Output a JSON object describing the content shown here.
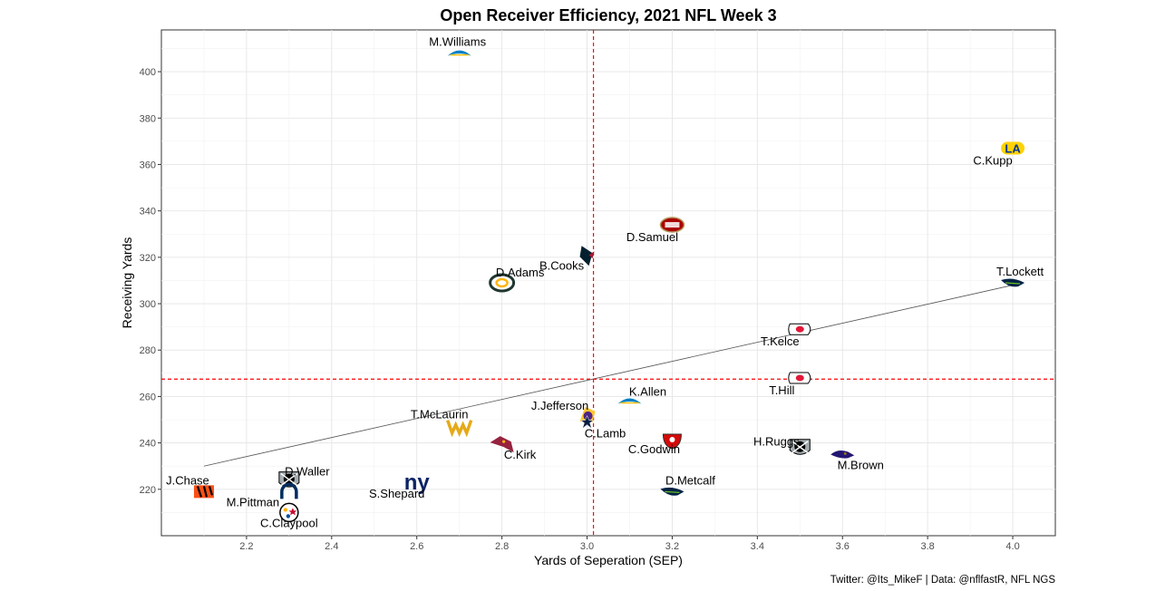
{
  "chart_data": {
    "type": "scatter",
    "title": "Open Receiver Efficiency, 2021 NFL Week 3",
    "xlabel": "Yards of Seperation (SEP)",
    "ylabel": "Receiving Yards",
    "caption": "Twitter: @Its_MikeF | Data: @nflfastR, NFL NGS",
    "xlim": [
      2.0,
      4.1
    ],
    "ylim": [
      200,
      418
    ],
    "x_ticks": [
      "2.2",
      "2.4",
      "2.6",
      "2.8",
      "3.0",
      "3.2",
      "3.4",
      "3.6",
      "3.8",
      "4.0"
    ],
    "y_ticks": [
      "220",
      "240",
      "260",
      "280",
      "300",
      "320",
      "340",
      "360",
      "380",
      "400"
    ],
    "grid": true,
    "reference_lines": {
      "x_mean": 3.015,
      "y_mean": 267.5,
      "color": "#ff0000",
      "style": "dashed"
    },
    "trend_line": {
      "x": [
        2.1,
        4.0
      ],
      "y": [
        230,
        308
      ],
      "color": "#555555"
    },
    "points": [
      {
        "player": "M.Williams",
        "team": "LAC",
        "x": 2.7,
        "y": 408
      },
      {
        "player": "C.Kupp",
        "team": "LA",
        "x": 4.0,
        "y": 367
      },
      {
        "player": "D.Samuel",
        "team": "SF",
        "x": 3.2,
        "y": 334
      },
      {
        "player": "B.Cooks",
        "team": "HOU",
        "x": 3.0,
        "y": 321
      },
      {
        "player": "D.Adams",
        "team": "GB",
        "x": 2.8,
        "y": 309
      },
      {
        "player": "T.Lockett",
        "team": "SEA",
        "x": 4.0,
        "y": 309
      },
      {
        "player": "T.Kelce",
        "team": "KC",
        "x": 3.5,
        "y": 289
      },
      {
        "player": "T.Hill",
        "team": "KC",
        "x": 3.5,
        "y": 268
      },
      {
        "player": "K.Allen",
        "team": "LAC",
        "x": 3.1,
        "y": 258
      },
      {
        "player": "J.Jefferson",
        "team": "MIN",
        "x": 3.0,
        "y": 252
      },
      {
        "player": "C.Lamb",
        "team": "DAL",
        "x": 3.0,
        "y": 249
      },
      {
        "player": "T.McLaurin",
        "team": "WAS",
        "x": 2.7,
        "y": 247
      },
      {
        "player": "C.Godwin",
        "team": "TB",
        "x": 3.2,
        "y": 241
      },
      {
        "player": "C.Kirk",
        "team": "ARI",
        "x": 2.8,
        "y": 239
      },
      {
        "player": "H.Ruggs",
        "team": "LV",
        "x": 3.5,
        "y": 238
      },
      {
        "player": "M.Brown",
        "team": "BAL",
        "x": 3.6,
        "y": 235
      },
      {
        "player": "S.Shepard",
        "team": "NYG",
        "x": 2.6,
        "y": 223
      },
      {
        "player": "D.Waller",
        "team": "LV",
        "x": 2.3,
        "y": 224
      },
      {
        "player": "D.Metcalf",
        "team": "SEA",
        "x": 3.2,
        "y": 219
      },
      {
        "player": "J.Chase",
        "team": "CIN",
        "x": 2.1,
        "y": 219
      },
      {
        "player": "M.Pittman",
        "team": "IND",
        "x": 2.3,
        "y": 219
      },
      {
        "player": "C.Claypool",
        "team": "PIT",
        "x": 2.3,
        "y": 210
      }
    ],
    "team_colors": {
      "LAC": "#0080c6",
      "LA": "#003594",
      "SF": "#aa0000",
      "HOU": "#03202f",
      "GB": "#203731",
      "SEA": "#002244",
      "KC": "#e31837",
      "MIN": "#4f2683",
      "DAL": "#041e42",
      "WAS": "#e5a919",
      "TB": "#d50a0a",
      "ARI": "#97233f",
      "LV": "#000000",
      "BAL": "#241773",
      "NYG": "#0b2265",
      "CIN": "#fb4f14",
      "IND": "#002c5f",
      "PIT": "#ffb612"
    }
  }
}
